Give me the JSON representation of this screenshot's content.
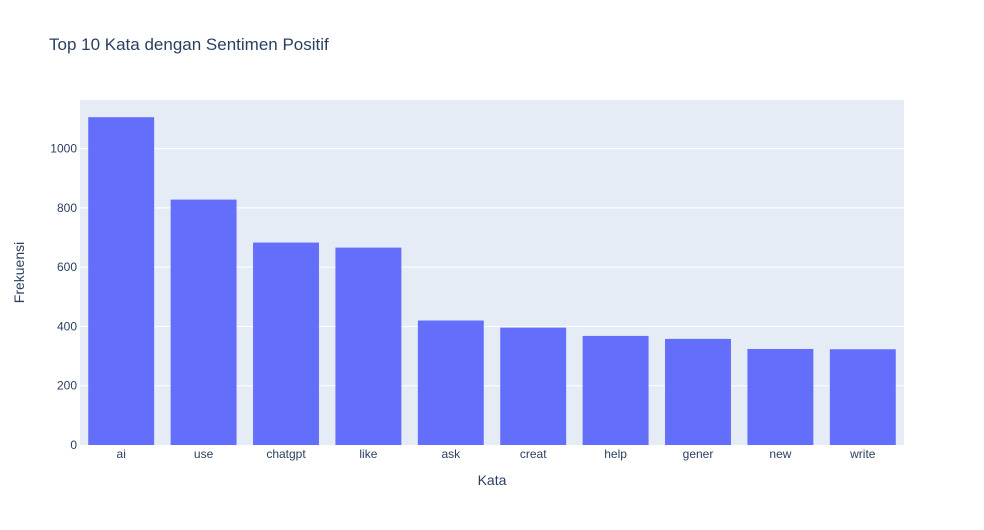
{
  "chart_data": {
    "type": "bar",
    "title": "Top 10 Kata dengan Sentimen Positif",
    "xlabel": "Kata",
    "ylabel": "Frekuensi",
    "categories": [
      "ai",
      "use",
      "chatgpt",
      "like",
      "ask",
      "creat",
      "help",
      "gener",
      "new",
      "write"
    ],
    "values": [
      1106,
      828,
      683,
      666,
      420,
      396,
      368,
      358,
      324,
      323
    ],
    "ylim": [
      0,
      1164
    ],
    "yticks": [
      0,
      200,
      400,
      600,
      800,
      1000
    ],
    "grid": true,
    "colors": {
      "bar": "#636efa",
      "plot_background": "#e5ecf6",
      "grid": "#ffffff",
      "text": "#2a3f5f"
    }
  }
}
